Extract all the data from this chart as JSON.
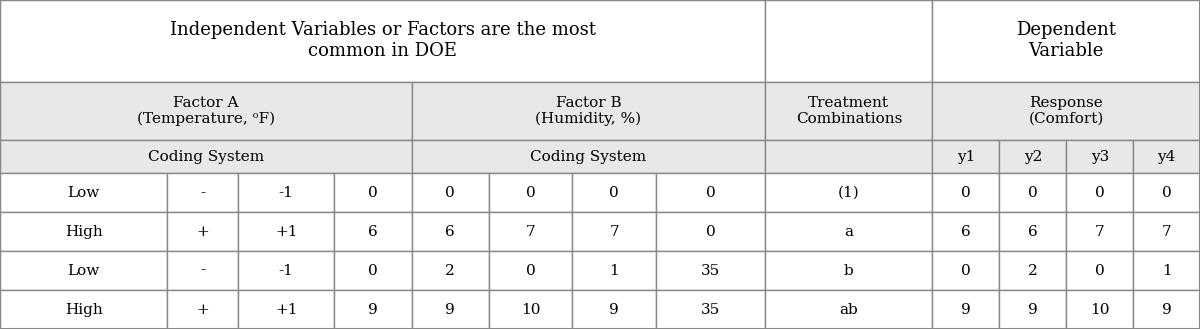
{
  "bg_color": "#e8e8e8",
  "white": "#ffffff",
  "border_color": "#888888",
  "text_color": "#000000",
  "title_row1": "Independent Variables or Factors are the most\ncommon in DOE",
  "dep_var_title": "Dependent\nVariable",
  "factor_a_label": "Factor A\n(Temperature, ᵒF)",
  "factor_b_label": "Factor B\n(Humidity, %)",
  "treatment_label": "Treatment\nCombinations",
  "response_label": "Response\n(Comfort)",
  "coding_system_a": "Coding System",
  "coding_system_b": "Coding System",
  "y_headers": [
    "y1",
    "y2",
    "y3",
    "y4"
  ],
  "data_rows": [
    [
      "Low",
      "-",
      "-1",
      "0",
      "0",
      "0",
      "0",
      "0",
      "(1)",
      "0",
      "0",
      "0",
      "0"
    ],
    [
      "High",
      "+",
      "+1",
      "6",
      "6",
      "7",
      "7",
      "0",
      "a",
      "6",
      "6",
      "7",
      "7"
    ],
    [
      "Low",
      "-",
      "-1",
      "0",
      "2",
      "0",
      "1",
      "35",
      "b",
      "0",
      "2",
      "0",
      "1"
    ],
    [
      "High",
      "+",
      "+1",
      "9",
      "9",
      "10",
      "9",
      "35",
      "ab",
      "9",
      "9",
      "10",
      "9"
    ]
  ],
  "col_widths": [
    1.3,
    0.55,
    0.75,
    0.6,
    0.6,
    0.65,
    0.65,
    0.85,
    1.3,
    0.52,
    0.52,
    0.52,
    0.52
  ],
  "row_heights": [
    2.1,
    1.5,
    0.85,
    1.0,
    1.0,
    1.0,
    1.0
  ],
  "figsize": [
    12.0,
    3.29
  ],
  "dpi": 100,
  "fontsize_title": 13,
  "fontsize_header": 11,
  "fontsize_data": 11
}
